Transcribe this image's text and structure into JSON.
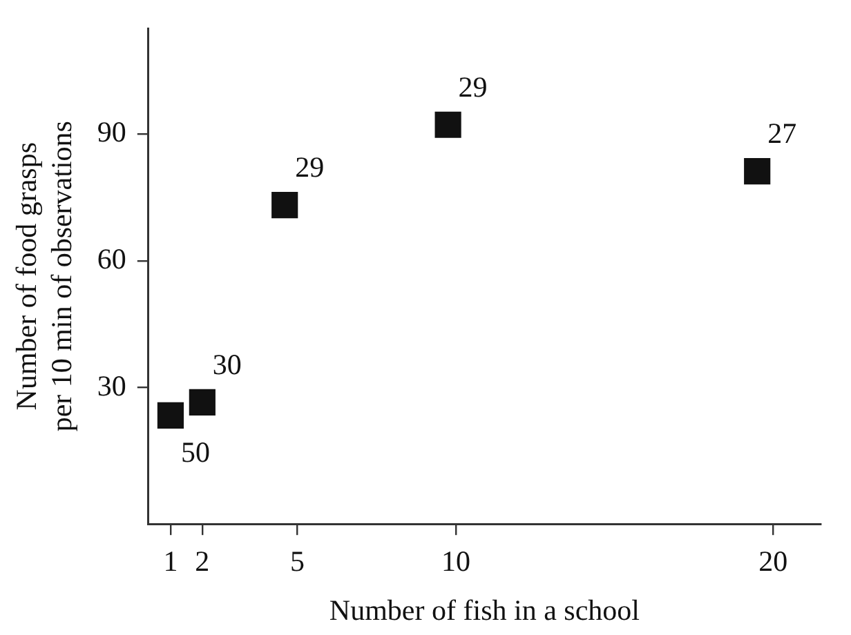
{
  "chart_data": {
    "type": "scatter",
    "xlabel": "Number of fish in a school",
    "ylabel": "Number of food grasps per 10 min of observations",
    "x": [
      1,
      2,
      4.6,
      9.75,
      19.5
    ],
    "series": [
      {
        "color": "#111111",
        "values": [
          23.4,
          26.5,
          73.2,
          92.2,
          81.2
        ]
      }
    ],
    "marker": "square",
    "grid": false,
    "xlim": [
      0.3,
      21.5
    ],
    "xticks": [
      1,
      2,
      5,
      10,
      20
    ],
    "ylim": [
      -2.3,
      115
    ],
    "yticks": [
      30,
      60,
      90
    ],
    "annotations": [
      {
        "text": "50",
        "x": 1,
        "y": 23.4
      },
      {
        "text": "30",
        "x": 2,
        "y": 26.5
      },
      {
        "text": "29",
        "x": 4.6,
        "y": 73.2
      },
      {
        "text": "29",
        "x": 9.75,
        "y": 92.2
      },
      {
        "text": "27",
        "x": 19.5,
        "y": 81.2
      }
    ]
  }
}
